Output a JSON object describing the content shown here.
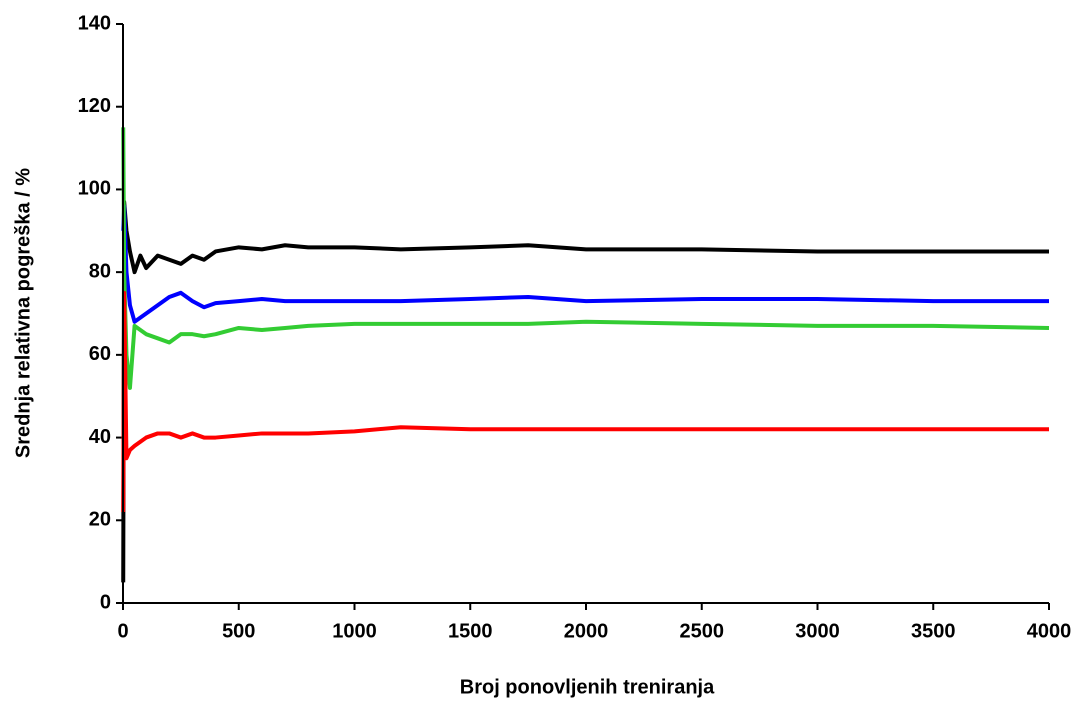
{
  "chart_data": {
    "type": "line",
    "x_label": "Broj ponovljenih treniranja",
    "y_label": "Srednja relativna pogreška / %",
    "x": [
      1,
      5,
      15,
      30,
      50,
      75,
      100,
      150,
      200,
      250,
      300,
      350,
      400,
      500,
      600,
      700,
      800,
      1000,
      1200,
      1500,
      1750,
      2000,
      2500,
      3000,
      3500,
      4000
    ],
    "series": [
      {
        "color": "#000000",
        "values": [
          5,
          97,
          90,
          85,
          80,
          84,
          81,
          84,
          83,
          82,
          84,
          83,
          85,
          86,
          85.5,
          86.5,
          86,
          86,
          85.5,
          86,
          86.5,
          85.5,
          85.5,
          85,
          85,
          85
        ]
      },
      {
        "color": "#0000ff",
        "values": [
          90,
          96,
          80,
          72,
          68,
          69,
          70,
          72,
          74,
          75,
          73,
          71.5,
          72.5,
          73,
          73.5,
          73,
          73,
          73,
          73,
          73.5,
          74,
          73,
          73.5,
          73.5,
          73,
          73
        ]
      },
      {
        "color": "#33cc33",
        "values": [
          115,
          80,
          60,
          52,
          67,
          66,
          65,
          64,
          63,
          65,
          65,
          64.5,
          65,
          66.5,
          66,
          66.5,
          67,
          67.5,
          67.5,
          67.5,
          67.5,
          68,
          67.5,
          67,
          67,
          66.5
        ]
      },
      {
        "color": "#ff0000",
        "values": [
          22,
          75,
          35,
          37,
          38,
          39,
          40,
          41,
          41,
          40,
          41,
          40,
          40,
          40.5,
          41,
          41,
          41,
          41.5,
          42.5,
          42,
          42,
          42,
          42,
          42,
          42,
          42
        ]
      }
    ],
    "xlim": [
      0,
      4000
    ],
    "xticks": [
      0,
      500,
      1000,
      1500,
      2000,
      2500,
      3000,
      3500,
      4000
    ],
    "ylim": [
      0,
      140
    ],
    "yticks": [
      0,
      20,
      40,
      60,
      80,
      100,
      120,
      140
    ],
    "grid": false
  }
}
